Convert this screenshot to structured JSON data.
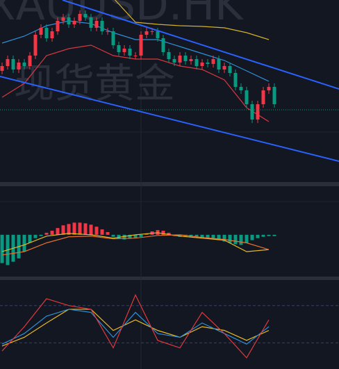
{
  "watermark": {
    "symbol": "XAUUSD.HK",
    "name": "现货黄金"
  },
  "candles": {
    "ylim": [
      0,
      262
    ],
    "open": [
      160,
      167,
      177,
      162,
      172,
      167,
      182,
      212,
      222,
      207,
      217,
      232,
      237,
      227,
      232,
      242,
      237,
      222,
      232,
      217,
      217,
      197,
      187,
      192,
      182,
      182,
      212,
      217,
      217,
      207,
      187,
      177,
      172,
      182,
      174,
      177,
      167,
      172,
      170,
      177,
      162,
      167,
      157,
      137,
      132,
      112,
      90,
      112,
      132,
      137
    ],
    "close": [
      167,
      177,
      162,
      172,
      167,
      182,
      212,
      222,
      207,
      217,
      232,
      237,
      227,
      232,
      242,
      237,
      222,
      232,
      217,
      217,
      197,
      187,
      192,
      182,
      182,
      212,
      217,
      217,
      207,
      187,
      177,
      172,
      182,
      174,
      177,
      167,
      172,
      170,
      177,
      162,
      167,
      157,
      137,
      132,
      112,
      90,
      112,
      132,
      137,
      112
    ],
    "high": [
      172,
      182,
      182,
      177,
      177,
      187,
      217,
      227,
      227,
      222,
      237,
      242,
      242,
      237,
      247,
      247,
      242,
      237,
      237,
      222,
      222,
      202,
      197,
      197,
      187,
      217,
      222,
      222,
      222,
      212,
      192,
      182,
      187,
      187,
      182,
      182,
      177,
      177,
      182,
      182,
      172,
      172,
      162,
      142,
      137,
      117,
      117,
      137,
      142,
      142
    ],
    "low": [
      155,
      162,
      157,
      157,
      162,
      162,
      177,
      207,
      202,
      202,
      212,
      227,
      222,
      222,
      227,
      232,
      217,
      217,
      212,
      212,
      192,
      182,
      182,
      177,
      177,
      177,
      207,
      212,
      202,
      182,
      172,
      167,
      167,
      169,
      169,
      162,
      162,
      165,
      165,
      157,
      157,
      152,
      132,
      127,
      107,
      85,
      85,
      107,
      127,
      107
    ],
    "up_color": "#f23645",
    "down_color": "#089981",
    "bands": [
      {
        "color": "#d4b02a",
        "x": [
          0,
          4,
          8,
          12,
          16,
          20,
          24,
          28,
          32,
          36,
          40,
          44,
          48
        ],
        "values": [
          280,
          280,
          280,
          270,
          270,
          265,
          230,
          227,
          225,
          224,
          222,
          215,
          205
        ]
      },
      {
        "color": "#2f8fd8",
        "x": [
          0,
          4,
          8,
          12,
          16,
          20,
          24,
          28,
          32,
          36,
          40,
          44,
          48
        ],
        "values": [
          200,
          210,
          225,
          232,
          228,
          215,
          205,
          205,
          195,
          185,
          175,
          160,
          145
        ]
      },
      {
        "color": "#d8383f",
        "x": [
          0,
          4,
          8,
          12,
          16,
          20,
          24,
          28,
          32,
          36,
          40,
          44,
          48
        ],
        "values": [
          122,
          142,
          182,
          192,
          197,
          182,
          177,
          177,
          167,
          162,
          147,
          107,
          87
        ]
      }
    ]
  },
  "macd": {
    "ylim": [
      -62,
      72
    ],
    "histogram": [
      -42,
      -45,
      -40,
      -35,
      -25,
      -12,
      -5,
      -2,
      3,
      6,
      10,
      14,
      16,
      18,
      18,
      17,
      15,
      12,
      8,
      4,
      -3,
      -6,
      -7,
      -6,
      -5,
      -3,
      2,
      5,
      7,
      6,
      3,
      -2,
      -3,
      -3,
      -3,
      -3,
      -4,
      -5,
      -6,
      -8,
      -10,
      -12,
      -14,
      -15,
      -12,
      -8,
      -5,
      -3,
      -2,
      -2
    ],
    "lines": [
      {
        "color": "#e8b923",
        "x": [
          0,
          4,
          8,
          12,
          16,
          20,
          24,
          28,
          32,
          36,
          40,
          44,
          48
        ],
        "values": [
          -25,
          -15,
          -2,
          2,
          0,
          -5,
          0,
          3,
          -2,
          -5,
          -8,
          -25,
          -22
        ]
      },
      {
        "color": "#e8702a",
        "x": [
          0,
          4,
          8,
          12,
          16,
          20,
          24,
          28,
          32,
          36,
          40,
          44,
          48
        ],
        "values": [
          -30,
          -25,
          -12,
          -3,
          -2,
          -6,
          -5,
          -1,
          0,
          -4,
          -7,
          -12,
          -22
        ]
      }
    ]
  },
  "kdj": {
    "ylim": [
      -22,
      121
    ],
    "levels": [
      20,
      80
    ],
    "lines": [
      {
        "color": "#e8b923",
        "x": [
          0,
          4,
          8,
          12,
          16,
          20,
          24,
          28,
          32,
          36,
          40,
          44,
          48
        ],
        "values": [
          15,
          29,
          52,
          74,
          74,
          40,
          57,
          40,
          29,
          46,
          40,
          24,
          40
        ]
      },
      {
        "color": "#2f8fd8",
        "x": [
          0,
          4,
          8,
          12,
          16,
          20,
          24,
          28,
          32,
          36,
          40,
          44,
          48
        ],
        "values": [
          18,
          35,
          63,
          74,
          69,
          29,
          69,
          35,
          29,
          52,
          35,
          18,
          46
        ]
      },
      {
        "color": "#e0393e",
        "x": [
          0,
          4,
          8,
          12,
          16,
          20,
          24,
          28,
          32,
          36,
          40,
          44,
          48
        ],
        "values": [
          7,
          46,
          91,
          80,
          74,
          12,
          97,
          24,
          12,
          69,
          35,
          -4,
          57
        ]
      }
    ]
  }
}
